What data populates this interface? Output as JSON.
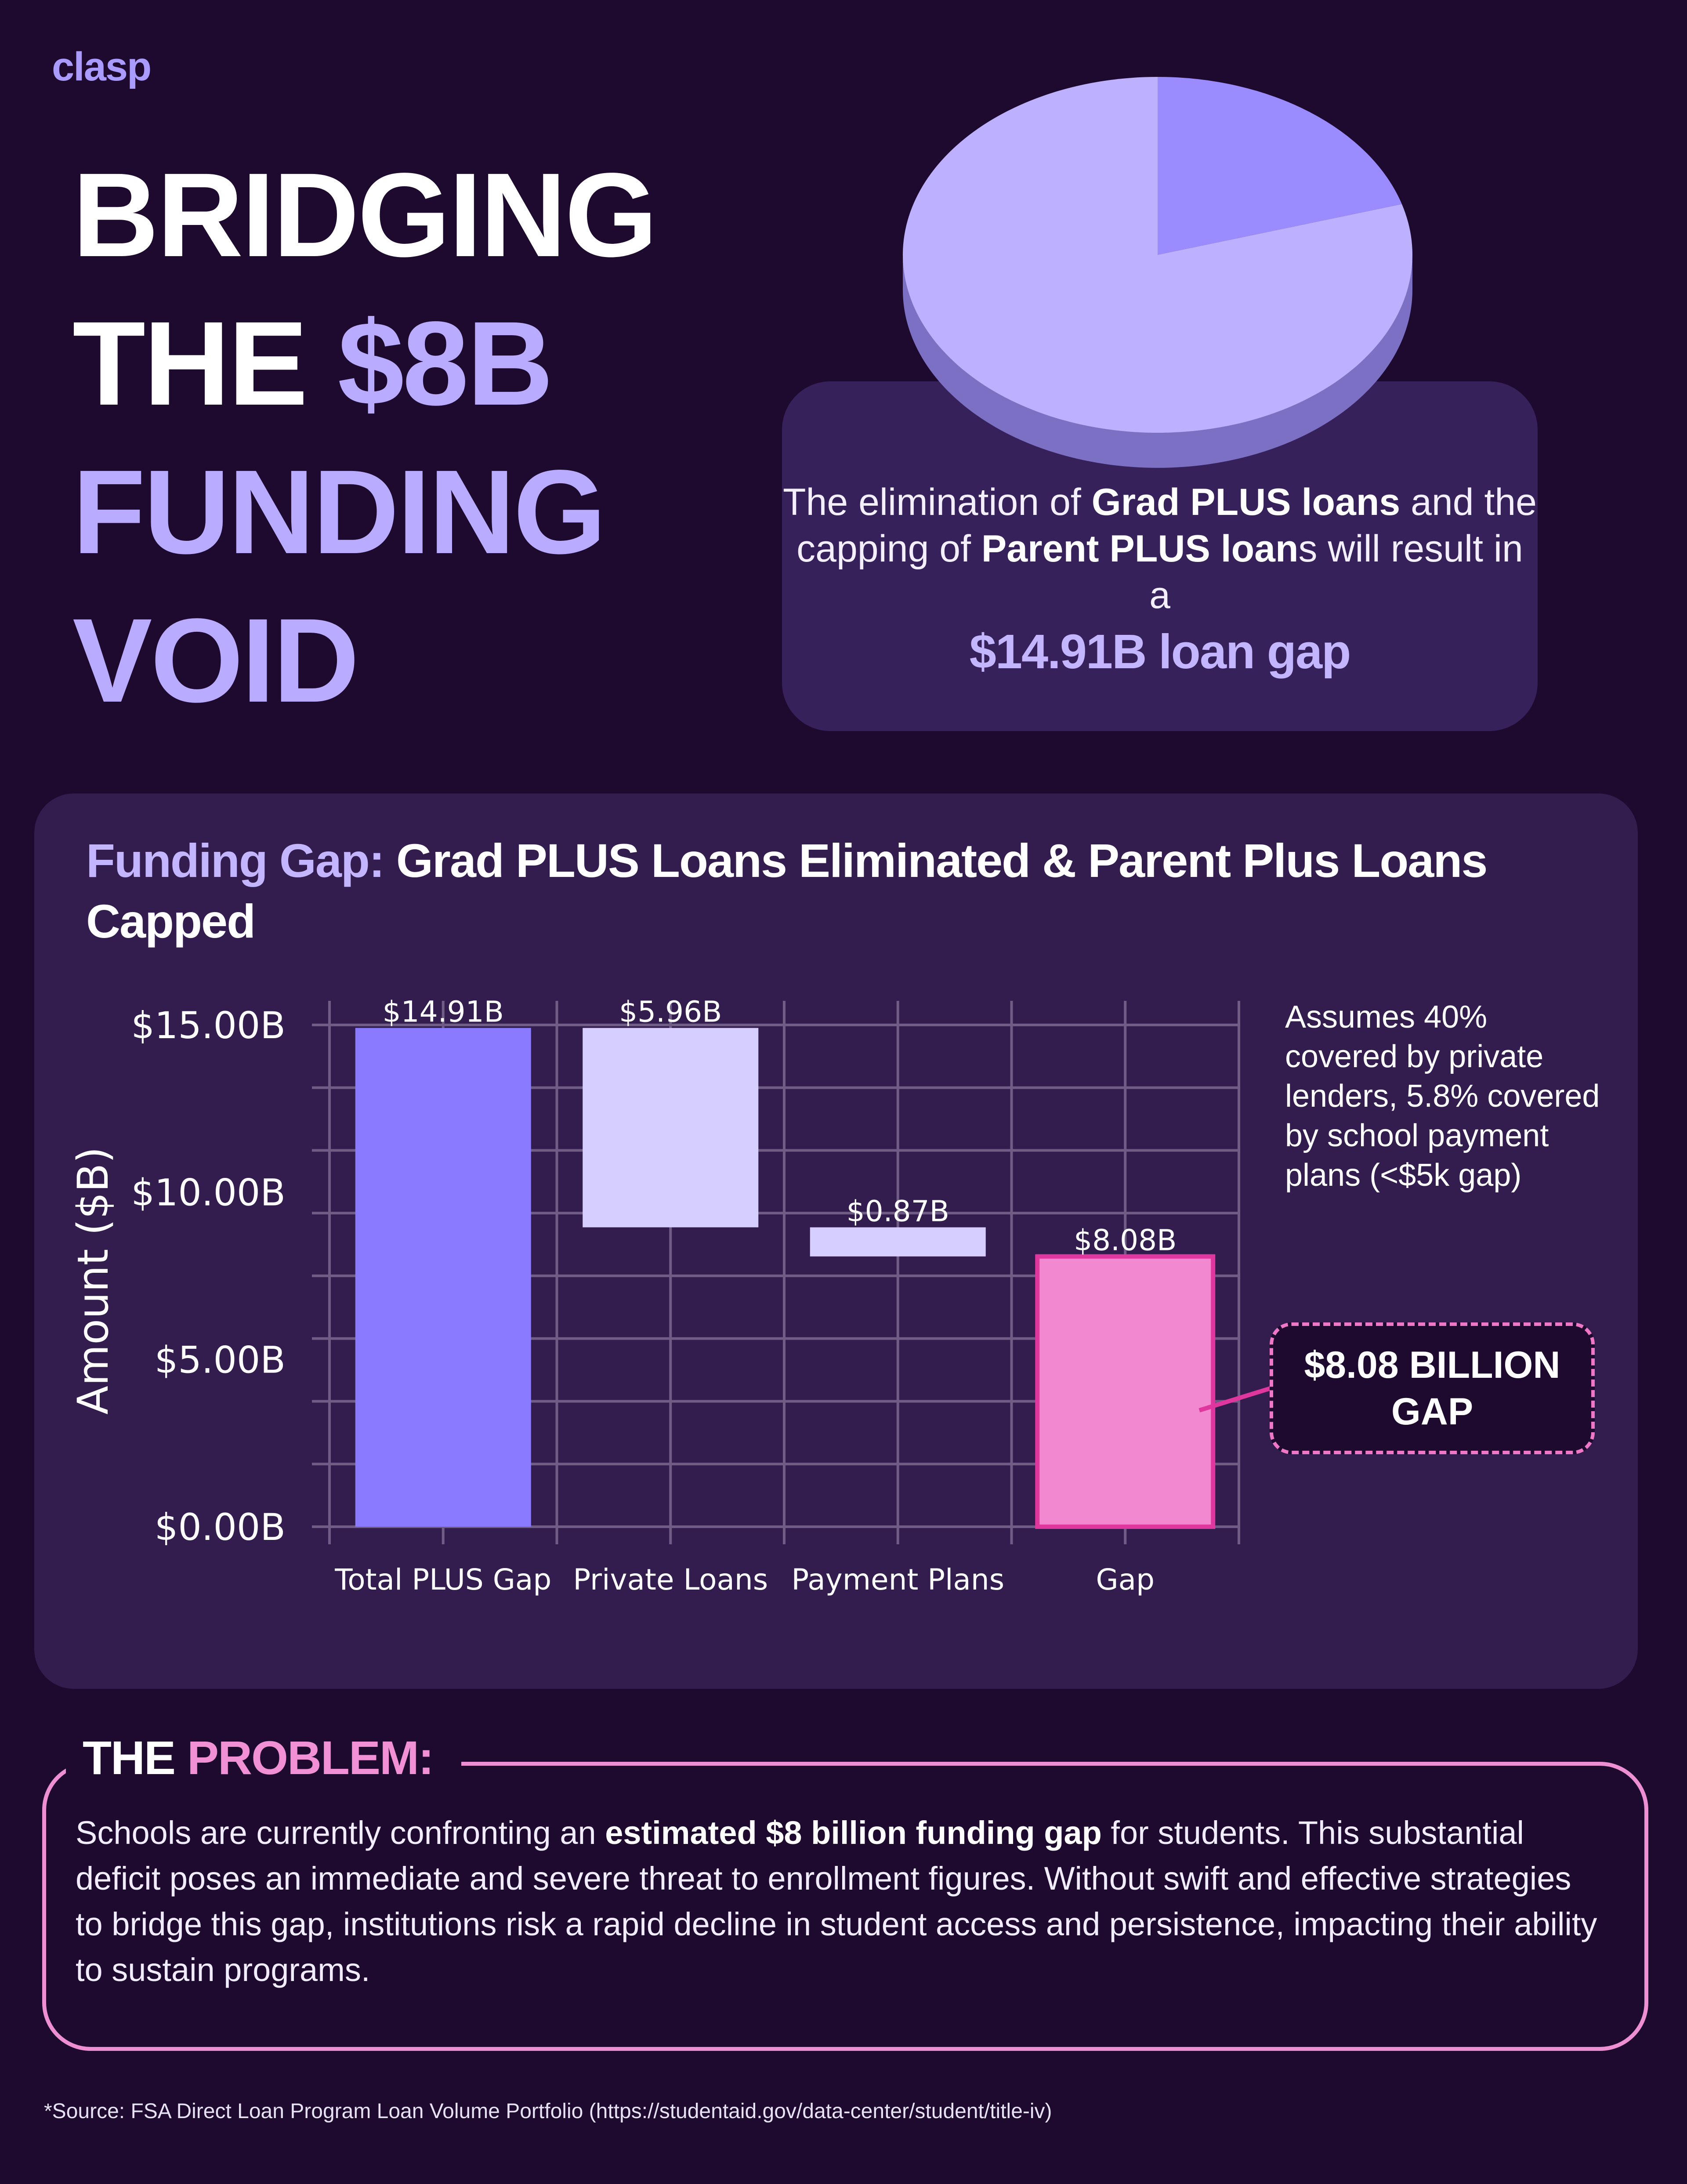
{
  "brand": {
    "logo_text": "clasp"
  },
  "headline": {
    "line1": "BRIDGING",
    "line2_a": "THE ",
    "line2_b": "$8B",
    "line3": "FUNDING",
    "line4": "VOID"
  },
  "pie": {
    "slices": [
      {
        "value": 20.4,
        "color": "#9a8cff"
      },
      {
        "value": 79.6,
        "color": "#bcb0ff"
      }
    ],
    "side_color": "#7b70c4"
  },
  "gap_card": {
    "t1": "The elimination of ",
    "b1": "Grad PLUS loans",
    "t2": " and the capping of ",
    "b2": "Parent PLUS loan",
    "t3": "s will result in a",
    "amount": "$14.91B loan gap"
  },
  "chart_title": {
    "lead": "Funding Gap:",
    "rest": " Grad PLUS Loans Eliminated & Parent Plus Loans Capped"
  },
  "chart_data": {
    "type": "bar",
    "subtype": "waterfall",
    "ylabel": "Amount ($B)",
    "ylim": [
      0,
      15
    ],
    "y_ticks": [
      {
        "value": 0,
        "label": "$0.00B"
      },
      {
        "value": 5,
        "label": "$5.00B"
      },
      {
        "value": 10,
        "label": "$10.00B"
      },
      {
        "value": 15,
        "label": "$15.00B"
      }
    ],
    "grid": true,
    "categories": [
      "Total PLUS Gap",
      "Private Loans",
      "Payment Plans",
      "Gap"
    ],
    "bars": [
      {
        "category": "Total PLUS Gap",
        "bottom": 0,
        "top": 14.91,
        "label": "$14.91B",
        "color": "#8a7aff"
      },
      {
        "category": "Private Loans",
        "bottom": 8.95,
        "top": 14.91,
        "label": "$5.96B",
        "color": "#d6ceff"
      },
      {
        "category": "Payment Plans",
        "bottom": 8.08,
        "top": 8.95,
        "label": "$0.87B",
        "color": "#d6ceff"
      },
      {
        "category": "Gap",
        "bottom": 0,
        "top": 8.08,
        "label": "$8.08B",
        "color": "#f288d0",
        "stroke": "#e0379e"
      }
    ],
    "note": "Assumes 40% covered by private lenders, 5.8% covered by school payment plans (<$5k gap)",
    "callout": "$8.08 BILLION GAP"
  },
  "problem": {
    "title_a": "THE ",
    "title_b": "PROBLEM:",
    "t1": "Schools are currently confronting an ",
    "b1": "estimated $8 billion funding gap",
    "t2": " for students. This substantial deficit poses an immediate and severe threat to enrollment figures. Without swift and effective strategies to bridge this gap, institutions risk a rapid decline in student access and persistence, impacting their ability to sustain programs."
  },
  "source": "*Source: FSA Direct Loan Program Loan Volume Portfolio (https://studentaid.gov/data-center/student/title-iv)"
}
